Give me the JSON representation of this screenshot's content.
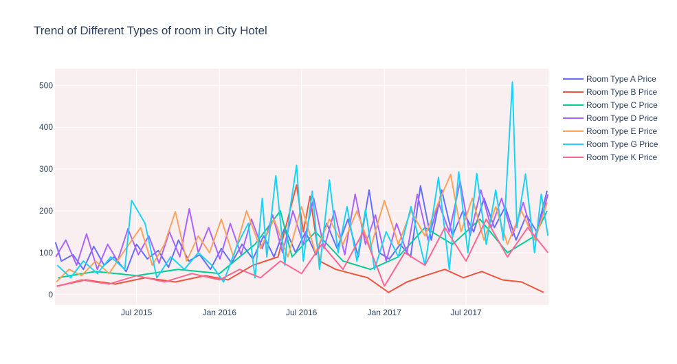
{
  "chart_data": {
    "type": "line",
    "title": "Trend of Different Types of room in City Hotel",
    "xlabel": "",
    "ylabel": "",
    "x_range": [
      "2015-01-01",
      "2017-12-31"
    ],
    "ylim": [
      -25,
      540
    ],
    "x_tick_labels": [
      {
        "date": "2015-07-01",
        "label": "Jul 2015"
      },
      {
        "date": "2016-01-01",
        "label": "Jan 2016"
      },
      {
        "date": "2016-07-01",
        "label": "Jul 2016"
      },
      {
        "date": "2017-01-01",
        "label": "Jan 2017"
      },
      {
        "date": "2017-07-01",
        "label": "Jul 2017"
      }
    ],
    "y_ticks": [
      0,
      100,
      200,
      300,
      400,
      500
    ],
    "grid": true,
    "plot_background": "#f9eff1",
    "legend_position": "right",
    "series": [
      {
        "name": "Room Type A Price",
        "color": "#636efa",
        "points": [
          [
            "2015-01-02",
            125
          ],
          [
            "2015-01-15",
            80
          ],
          [
            "2015-02-10",
            95
          ],
          [
            "2015-03-05",
            60
          ],
          [
            "2015-03-28",
            115
          ],
          [
            "2015-04-20",
            70
          ],
          [
            "2015-05-12",
            90
          ],
          [
            "2015-06-08",
            55
          ],
          [
            "2015-07-01",
            120
          ],
          [
            "2015-07-25",
            85
          ],
          [
            "2015-08-18",
            105
          ],
          [
            "2015-09-10",
            65
          ],
          [
            "2015-10-02",
            130
          ],
          [
            "2015-10-25",
            80
          ],
          [
            "2015-11-18",
            95
          ],
          [
            "2015-12-12",
            60
          ],
          [
            "2016-01-05",
            110
          ],
          [
            "2016-01-28",
            75
          ],
          [
            "2016-02-20",
            120
          ],
          [
            "2016-03-15",
            85
          ],
          [
            "2016-04-08",
            140
          ],
          [
            "2016-05-01",
            90
          ],
          [
            "2016-05-25",
            160
          ],
          [
            "2016-06-18",
            100
          ],
          [
            "2016-07-10",
            150
          ],
          [
            "2016-08-02",
            95
          ],
          [
            "2016-08-26",
            170
          ],
          [
            "2016-09-18",
            110
          ],
          [
            "2016-10-12",
            180
          ],
          [
            "2016-11-04",
            90
          ],
          [
            "2016-11-28",
            250
          ],
          [
            "2016-12-20",
            100
          ],
          [
            "2017-01-12",
            85
          ],
          [
            "2017-02-05",
            120
          ],
          [
            "2017-02-28",
            90
          ],
          [
            "2017-03-22",
            260
          ],
          [
            "2017-04-15",
            130
          ],
          [
            "2017-05-08",
            250
          ],
          [
            "2017-06-01",
            140
          ],
          [
            "2017-06-24",
            200
          ],
          [
            "2017-07-18",
            150
          ],
          [
            "2017-08-10",
            230
          ],
          [
            "2017-09-02",
            160
          ],
          [
            "2017-09-26",
            210
          ],
          [
            "2017-10-20",
            130
          ],
          [
            "2017-11-12",
            190
          ],
          [
            "2017-12-05",
            150
          ],
          [
            "2017-12-28",
            248
          ]
        ]
      },
      {
        "name": "Room Type B Price",
        "color": "#ef553b",
        "points": [
          [
            "2015-01-05",
            20
          ],
          [
            "2015-03-10",
            35
          ],
          [
            "2015-05-15",
            25
          ],
          [
            "2015-07-20",
            40
          ],
          [
            "2015-09-25",
            30
          ],
          [
            "2015-11-30",
            45
          ],
          [
            "2016-01-20",
            35
          ],
          [
            "2016-03-15",
            70
          ],
          [
            "2016-05-10",
            90
          ],
          [
            "2016-06-20",
            262
          ],
          [
            "2016-07-05",
            150
          ],
          [
            "2016-07-20",
            235
          ],
          [
            "2016-08-10",
            80
          ],
          [
            "2016-09-15",
            60
          ],
          [
            "2016-10-20",
            50
          ],
          [
            "2016-11-25",
            40
          ],
          [
            "2017-01-10",
            5
          ],
          [
            "2017-02-20",
            30
          ],
          [
            "2017-04-01",
            45
          ],
          [
            "2017-05-15",
            60
          ],
          [
            "2017-06-25",
            40
          ],
          [
            "2017-08-05",
            55
          ],
          [
            "2017-09-20",
            35
          ],
          [
            "2017-11-01",
            30
          ],
          [
            "2017-12-20",
            5
          ]
        ]
      },
      {
        "name": "Room Type C Price",
        "color": "#00cc96",
        "points": [
          [
            "2015-01-08",
            40
          ],
          [
            "2015-04-01",
            55
          ],
          [
            "2015-07-01",
            45
          ],
          [
            "2015-10-01",
            60
          ],
          [
            "2016-01-01",
            50
          ],
          [
            "2016-03-20",
            120
          ],
          [
            "2016-05-15",
            200
          ],
          [
            "2016-06-10",
            90
          ],
          [
            "2016-08-01",
            150
          ],
          [
            "2016-10-01",
            80
          ],
          [
            "2016-12-01",
            60
          ],
          [
            "2017-02-01",
            90
          ],
          [
            "2017-04-01",
            160
          ],
          [
            "2017-06-01",
            120
          ],
          [
            "2017-08-01",
            180
          ],
          [
            "2017-10-01",
            100
          ],
          [
            "2017-12-01",
            140
          ],
          [
            "2017-12-28",
            200
          ]
        ]
      },
      {
        "name": "Room Type D Price",
        "color": "#ab63fa",
        "points": [
          [
            "2015-01-03",
            90
          ],
          [
            "2015-01-25",
            130
          ],
          [
            "2015-02-18",
            70
          ],
          [
            "2015-03-12",
            145
          ],
          [
            "2015-04-05",
            60
          ],
          [
            "2015-04-28",
            120
          ],
          [
            "2015-05-20",
            80
          ],
          [
            "2015-06-12",
            157
          ],
          [
            "2015-07-05",
            95
          ],
          [
            "2015-07-28",
            140
          ],
          [
            "2015-08-20",
            75
          ],
          [
            "2015-09-12",
            150
          ],
          [
            "2015-10-05",
            90
          ],
          [
            "2015-10-26",
            205
          ],
          [
            "2015-11-15",
            100
          ],
          [
            "2015-12-08",
            160
          ],
          [
            "2016-01-02",
            85
          ],
          [
            "2016-01-25",
            170
          ],
          [
            "2016-02-18",
            95
          ],
          [
            "2016-03-12",
            180
          ],
          [
            "2016-04-05",
            110
          ],
          [
            "2016-04-28",
            190
          ],
          [
            "2016-05-20",
            100
          ],
          [
            "2016-06-12",
            200
          ],
          [
            "2016-07-05",
            120
          ],
          [
            "2016-07-28",
            230
          ],
          [
            "2016-08-20",
            110
          ],
          [
            "2016-09-12",
            200
          ],
          [
            "2016-10-05",
            95
          ],
          [
            "2016-10-28",
            240
          ],
          [
            "2016-11-20",
            120
          ],
          [
            "2016-12-12",
            190
          ],
          [
            "2017-01-05",
            80
          ],
          [
            "2017-01-28",
            170
          ],
          [
            "2017-02-20",
            100
          ],
          [
            "2017-03-15",
            240
          ],
          [
            "2017-04-08",
            130
          ],
          [
            "2017-05-01",
            220
          ],
          [
            "2017-05-25",
            150
          ],
          [
            "2017-06-18",
            270
          ],
          [
            "2017-07-10",
            140
          ],
          [
            "2017-08-03",
            250
          ],
          [
            "2017-08-26",
            160
          ],
          [
            "2017-09-18",
            230
          ],
          [
            "2017-10-12",
            140
          ],
          [
            "2017-11-05",
            220
          ],
          [
            "2017-11-28",
            130
          ],
          [
            "2017-12-20",
            200
          ],
          [
            "2017-12-30",
            240
          ]
        ]
      },
      {
        "name": "Room Type E Price",
        "color": "#fea15a",
        "points": [
          [
            "2015-01-04",
            30
          ],
          [
            "2015-02-01",
            60
          ],
          [
            "2015-03-01",
            45
          ],
          [
            "2015-04-01",
            80
          ],
          [
            "2015-05-01",
            50
          ],
          [
            "2015-06-01",
            100
          ],
          [
            "2015-07-10",
            160
          ],
          [
            "2015-08-05",
            70
          ],
          [
            "2015-09-01",
            120
          ],
          [
            "2015-09-25",
            198
          ],
          [
            "2015-10-20",
            80
          ],
          [
            "2015-11-15",
            140
          ],
          [
            "2015-12-10",
            100
          ],
          [
            "2016-01-05",
            180
          ],
          [
            "2016-02-01",
            90
          ],
          [
            "2016-03-01",
            200
          ],
          [
            "2016-04-01",
            110
          ],
          [
            "2016-05-01",
            180
          ],
          [
            "2016-06-01",
            90
          ],
          [
            "2016-07-01",
            210
          ],
          [
            "2016-08-01",
            100
          ],
          [
            "2016-09-01",
            180
          ],
          [
            "2016-10-01",
            120
          ],
          [
            "2016-11-01",
            200
          ],
          [
            "2016-12-01",
            110
          ],
          [
            "2017-01-01",
            225
          ],
          [
            "2017-02-01",
            120
          ],
          [
            "2017-03-01",
            200
          ],
          [
            "2017-04-01",
            140
          ],
          [
            "2017-05-01",
            220
          ],
          [
            "2017-05-28",
            287
          ],
          [
            "2017-06-20",
            150
          ],
          [
            "2017-07-15",
            230
          ],
          [
            "2017-08-10",
            130
          ],
          [
            "2017-09-05",
            210
          ],
          [
            "2017-10-01",
            120
          ],
          [
            "2017-11-01",
            200
          ],
          [
            "2017-12-01",
            130
          ],
          [
            "2017-12-28",
            220
          ]
        ]
      },
      {
        "name": "Room Type G Price",
        "color": "#19d3f3",
        "points": [
          [
            "2015-01-06",
            70
          ],
          [
            "2015-02-05",
            40
          ],
          [
            "2015-03-05",
            80
          ],
          [
            "2015-04-05",
            50
          ],
          [
            "2015-05-05",
            90
          ],
          [
            "2015-06-05",
            60
          ],
          [
            "2015-06-20",
            225
          ],
          [
            "2015-07-20",
            170
          ],
          [
            "2015-08-15",
            40
          ],
          [
            "2015-09-15",
            90
          ],
          [
            "2015-10-15",
            60
          ],
          [
            "2015-11-15",
            100
          ],
          [
            "2015-12-15",
            70
          ],
          [
            "2016-01-10",
            30
          ],
          [
            "2016-02-10",
            120
          ],
          [
            "2016-03-05",
            170
          ],
          [
            "2016-03-20",
            40
          ],
          [
            "2016-04-05",
            230
          ],
          [
            "2016-04-15",
            90
          ],
          [
            "2016-05-05",
            284
          ],
          [
            "2016-05-25",
            70
          ],
          [
            "2016-06-05",
            200
          ],
          [
            "2016-06-20",
            309
          ],
          [
            "2016-07-05",
            80
          ],
          [
            "2016-07-25",
            247
          ],
          [
            "2016-08-10",
            60
          ],
          [
            "2016-09-01",
            274
          ],
          [
            "2016-09-20",
            100
          ],
          [
            "2016-10-10",
            210
          ],
          [
            "2016-11-01",
            80
          ],
          [
            "2016-11-20",
            203
          ],
          [
            "2016-12-10",
            60
          ],
          [
            "2017-01-05",
            150
          ],
          [
            "2017-02-01",
            90
          ],
          [
            "2017-03-01",
            210
          ],
          [
            "2017-04-01",
            70
          ],
          [
            "2017-05-01",
            280
          ],
          [
            "2017-05-25",
            60
          ],
          [
            "2017-06-15",
            293
          ],
          [
            "2017-07-05",
            100
          ],
          [
            "2017-07-25",
            289
          ],
          [
            "2017-08-15",
            120
          ],
          [
            "2017-09-05",
            250
          ],
          [
            "2017-09-22",
            130
          ],
          [
            "2017-10-12",
            508
          ],
          [
            "2017-10-22",
            160
          ],
          [
            "2017-11-10",
            288
          ],
          [
            "2017-11-30",
            100
          ],
          [
            "2017-12-15",
            240
          ],
          [
            "2017-12-30",
            140
          ]
        ]
      },
      {
        "name": "Room Type K Price",
        "color": "#ff6692",
        "points": [
          [
            "2015-01-07",
            20
          ],
          [
            "2015-03-01",
            35
          ],
          [
            "2015-05-01",
            25
          ],
          [
            "2015-07-01",
            45
          ],
          [
            "2015-09-01",
            30
          ],
          [
            "2015-11-01",
            50
          ],
          [
            "2016-01-01",
            35
          ],
          [
            "2016-02-15",
            60
          ],
          [
            "2016-04-01",
            40
          ],
          [
            "2016-05-15",
            80
          ],
          [
            "2016-07-01",
            50
          ],
          [
            "2016-08-15",
            120
          ],
          [
            "2016-10-01",
            60
          ],
          [
            "2016-11-15",
            150
          ],
          [
            "2017-01-01",
            20
          ],
          [
            "2017-02-15",
            100
          ],
          [
            "2017-04-01",
            70
          ],
          [
            "2017-05-15",
            160
          ],
          [
            "2017-07-01",
            80
          ],
          [
            "2017-08-15",
            180
          ],
          [
            "2017-10-01",
            90
          ],
          [
            "2017-11-15",
            160
          ],
          [
            "2017-12-30",
            100
          ]
        ]
      }
    ]
  }
}
